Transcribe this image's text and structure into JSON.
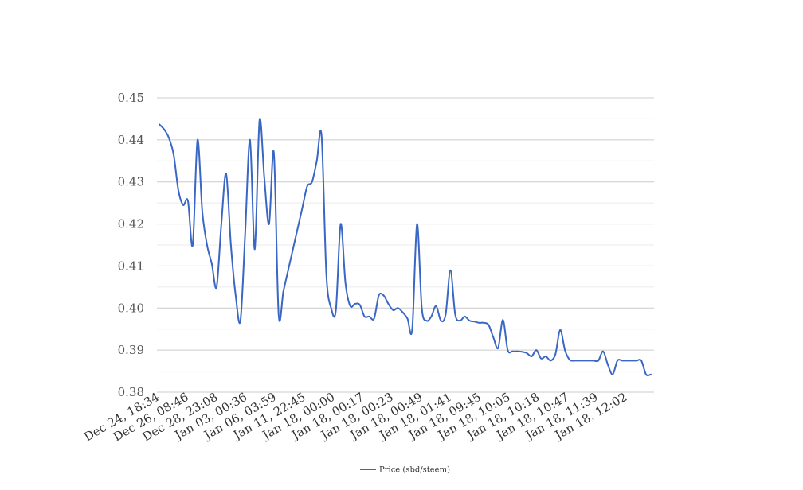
{
  "chart_data": {
    "type": "line",
    "title": "",
    "xlabel": "",
    "ylabel": "",
    "ylim": [
      0.38,
      0.45
    ],
    "yticks": [
      "0.38",
      "0.39",
      "0.40",
      "0.41",
      "0.42",
      "0.43",
      "0.44",
      "0.45"
    ],
    "grid": true,
    "legend_position": "bottom",
    "x_tick_labels": [
      "Dec 24, 18:34",
      "Dec 26, 08:46",
      "Dec 28, 23:08",
      "Jan 03, 00:36",
      "Jan 06, 03:59",
      "Jan 11, 22:45",
      "Jan 18, 00:00",
      "Jan 18, 00:17",
      "Jan 18, 00:23",
      "Jan 18, 00:49",
      "Jan 18, 01:41",
      "Jan 18, 09:45",
      "Jan 18, 10:05",
      "Jan 18, 10:18",
      "Jan 18, 10:47",
      "Jan 18, 11:39",
      "Jan 18, 12:02"
    ],
    "series": [
      {
        "name": "Price (sbd/steem)",
        "color": "#3a66c4",
        "values": [
          0.4437,
          0.4425,
          0.4405,
          0.4365,
          0.428,
          0.4245,
          0.4255,
          0.415,
          0.44,
          0.423,
          0.415,
          0.4105,
          0.405,
          0.42,
          0.432,
          0.415,
          0.403,
          0.397,
          0.418,
          0.44,
          0.414,
          0.4447,
          0.431,
          0.42,
          0.437,
          0.3985,
          0.404,
          0.409,
          0.414,
          0.419,
          0.424,
          0.429,
          0.43,
          0.435,
          0.441,
          0.408,
          0.4,
          0.3995,
          0.42,
          0.406,
          0.4005,
          0.401,
          0.4008,
          0.398,
          0.398,
          0.3975,
          0.403,
          0.403,
          0.401,
          0.3995,
          0.4,
          0.399,
          0.3975,
          0.395,
          0.42,
          0.4,
          0.397,
          0.398,
          0.4005,
          0.397,
          0.3985,
          0.409,
          0.3985,
          0.397,
          0.398,
          0.397,
          0.3968,
          0.3965,
          0.3965,
          0.396,
          0.393,
          0.3905,
          0.3972,
          0.39,
          0.3897,
          0.3897,
          0.3896,
          0.3893,
          0.3885,
          0.39,
          0.388,
          0.3885,
          0.3875,
          0.389,
          0.3948,
          0.39,
          0.3877,
          0.3875,
          0.3875,
          0.3875,
          0.3875,
          0.3875,
          0.3875,
          0.3897,
          0.3865,
          0.3842,
          0.3875,
          0.3875,
          0.3875,
          0.3875,
          0.3875,
          0.3875,
          0.3842,
          0.3842
        ]
      }
    ]
  }
}
